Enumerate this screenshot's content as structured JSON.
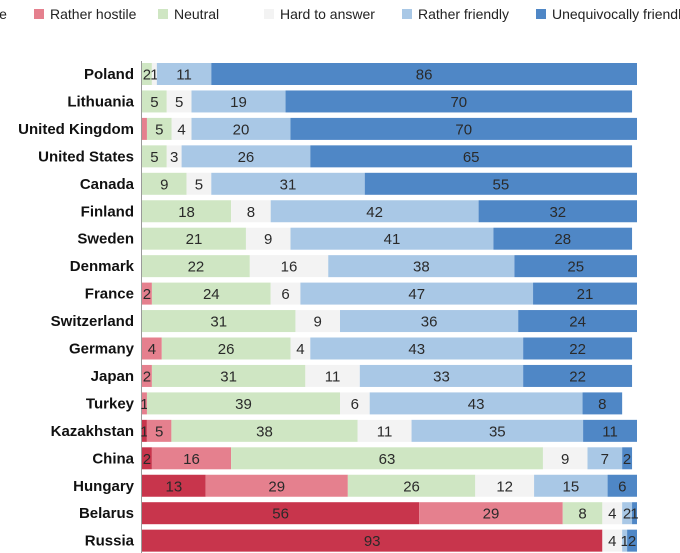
{
  "chart_data": {
    "type": "bar",
    "orientation": "horizontal",
    "stacked": true,
    "normalized": true,
    "title": "",
    "xlabel": "",
    "ylabel": "",
    "xlim": [
      0,
      100
    ],
    "grid": false,
    "legend_position": "top",
    "categories": [
      "Poland",
      "Lithuania",
      "United Kingdom",
      "United States",
      "Canada",
      "Finland",
      "Sweden",
      "Denmark",
      "France",
      "Switzerland",
      "Germany",
      "Japan",
      "Turkey",
      "Kazakhstan",
      "China",
      "Hungary",
      "Belarus",
      "Russia"
    ],
    "series": [
      {
        "name": "Unequivocally hostile",
        "legend_label": "le",
        "color": "#c8354c",
        "values": [
          0,
          0,
          0,
          0,
          0,
          0,
          0,
          0,
          0,
          0,
          0,
          0,
          0,
          1,
          2,
          13,
          56,
          93
        ],
        "labels": [
          "",
          "",
          "",
          "",
          "",
          "",
          "",
          "",
          "",
          "",
          "",
          "",
          "",
          "1",
          "2",
          "13",
          "56",
          "93"
        ]
      },
      {
        "name": "Rather hostile",
        "legend_label": "Rather hostile",
        "color": "#e5808e",
        "values": [
          0,
          0,
          1,
          0,
          0,
          0,
          0,
          0,
          2,
          0,
          4,
          2,
          1,
          5,
          16,
          29,
          29,
          0
        ],
        "labels": [
          "",
          "",
          "",
          "",
          "",
          "",
          "",
          "",
          "2",
          "",
          "4",
          "2",
          "1",
          "5",
          "16",
          "29",
          "29",
          ""
        ]
      },
      {
        "name": "Neutral",
        "legend_label": "Neutral",
        "color": "#cfe6c3",
        "values": [
          2,
          5,
          5,
          5,
          9,
          18,
          21,
          22,
          24,
          31,
          26,
          31,
          39,
          38,
          63,
          26,
          8,
          0
        ],
        "labels": [
          "2",
          "5",
          "5",
          "5",
          "9",
          "18",
          "21",
          "22",
          "24",
          "31",
          "26",
          "31",
          "39",
          "38",
          "63",
          "26",
          "8",
          ""
        ]
      },
      {
        "name": "Hard to answer",
        "legend_label": "Hard to answer",
        "color": "#f3f3f3",
        "values": [
          1,
          5,
          4,
          3,
          5,
          8,
          9,
          16,
          6,
          9,
          4,
          11,
          6,
          11,
          9,
          12,
          4,
          4
        ],
        "labels": [
          "1",
          "5",
          "4",
          "3",
          "5",
          "8",
          "9",
          "16",
          "6",
          "9",
          "4",
          "11",
          "6",
          "11",
          "9",
          "12",
          "4",
          "4"
        ]
      },
      {
        "name": "Rather friendly",
        "legend_label": "Rather friendly",
        "color": "#a9c8e6",
        "values": [
          11,
          19,
          20,
          26,
          31,
          42,
          41,
          38,
          47,
          36,
          43,
          33,
          43,
          35,
          7,
          15,
          2,
          1
        ],
        "labels": [
          "11",
          "19",
          "20",
          "26",
          "31",
          "42",
          "41",
          "38",
          "47",
          "36",
          "43",
          "33",
          "43",
          "35",
          "7",
          "15",
          "2",
          "1"
        ]
      },
      {
        "name": "Unequivocally friendly",
        "legend_label": "Unequivocally friendly",
        "color": "#4f87c6",
        "values": [
          86,
          70,
          70,
          65,
          55,
          32,
          28,
          25,
          21,
          24,
          22,
          22,
          8,
          11,
          2,
          6,
          1,
          2
        ],
        "labels": [
          "86",
          "70",
          "70",
          "65",
          "55",
          "32",
          "28",
          "25",
          "21",
          "24",
          "22",
          "22",
          "8",
          "11",
          "2",
          "6",
          "1",
          "2"
        ]
      }
    ]
  }
}
